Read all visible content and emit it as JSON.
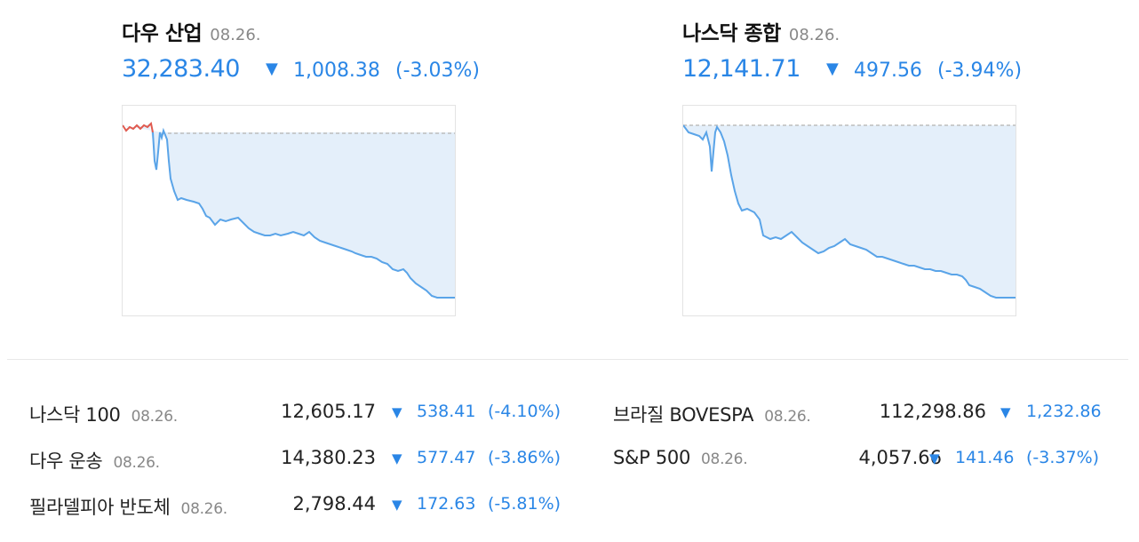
{
  "featured": [
    {
      "name": "다우 산업",
      "date": "08.26.",
      "price": "32,283.40",
      "arrow": "▼",
      "change": "1,008.38",
      "pct": "(-3.03%)",
      "colors": {
        "line": "#5aa4e8",
        "fill": "#e4effa",
        "up_line": "#e05a4f",
        "baseline": "#bdbdbd"
      }
    },
    {
      "name": "나스닥 종합",
      "date": "08.26.",
      "price": "12,141.71",
      "arrow": "▼",
      "change": "497.56",
      "pct": "(-3.94%)",
      "colors": {
        "line": "#5aa4e8",
        "fill": "#e4effa",
        "baseline": "#bdbdbd"
      }
    }
  ],
  "indices": [
    {
      "name": "나스닥 100",
      "date": "08.26.",
      "price": "12,605.17",
      "arrow": "▼",
      "change": "538.41",
      "pct": "(-4.10%)"
    },
    {
      "name": "다우 운송",
      "date": "08.26.",
      "price": "14,380.23",
      "arrow": "▼",
      "change": "577.47",
      "pct": "(-3.86%)"
    },
    {
      "name": "필라델피아 반도체",
      "date": "08.26.",
      "price": "2,798.44",
      "arrow": "▼",
      "change": "172.63",
      "pct": "(-5.81%)"
    },
    {
      "name": "브라질 BOVESPA",
      "date": "08.26.",
      "price": "112,298.86",
      "arrow": "▼",
      "change": "1,232.86",
      "pct": ""
    },
    {
      "name": "S&P 500",
      "date": "08.26.",
      "price": "4,057.66",
      "arrow": "▼",
      "change": "141.46",
      "pct": "(-3.37%)"
    }
  ],
  "accent_color": "#2a86e6"
}
